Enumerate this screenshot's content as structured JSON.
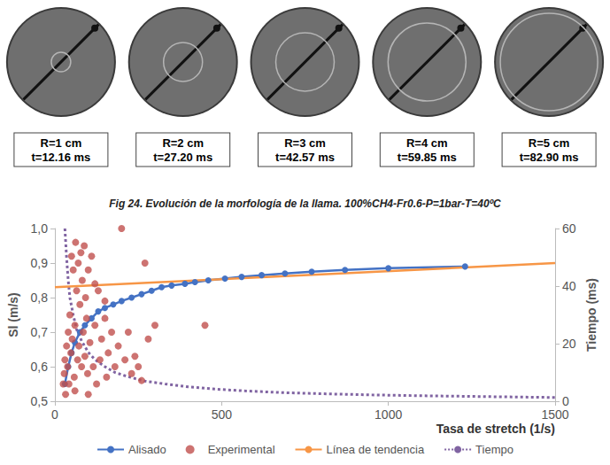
{
  "panels": [
    {
      "label": "R=1 cm",
      "time": "t=12.16 ms"
    },
    {
      "label": "R=2 cm",
      "time": "t=27.20 ms"
    },
    {
      "label": "R=3 cm",
      "time": "t=42.57 ms"
    },
    {
      "label": "R=4 cm",
      "time": "t=59.85 ms"
    },
    {
      "label": "R=5 cm",
      "time": "t=82.90 ms"
    }
  ],
  "caption": "Fig 24. Evolución de la morfología de la llama. 100%CH4-Fr0.6-P=1bar-T=40ºC",
  "chart_data": {
    "type": "scatter",
    "x_label": "Tasa de stretch (1/s)",
    "y_label": "Sl (m/s)",
    "y2_label": "Tiempo (ms)",
    "xlim": [
      0,
      1500
    ],
    "xticks": [
      0,
      500,
      1000,
      1500
    ],
    "ylim": [
      0.5,
      1.0
    ],
    "yticks": [
      {
        "value": 0.5,
        "label": "0,5"
      },
      {
        "value": 0.6,
        "label": "0,6"
      },
      {
        "value": 0.7,
        "label": "0,7"
      },
      {
        "value": 0.8,
        "label": "0,8"
      },
      {
        "value": 0.9,
        "label": "0,9"
      },
      {
        "value": 1.0,
        "label": "1,0"
      }
    ],
    "y2lim": [
      0,
      60
    ],
    "y2ticks": [
      0,
      20,
      40,
      60
    ],
    "grid": false,
    "legend": "bottom",
    "series": [
      {
        "name": "Alisado",
        "type": "line",
        "marker": "circle",
        "line_style": "solid",
        "color": "#4472c4",
        "x": [
          30,
          40,
          50,
          60,
          75,
          90,
          110,
          130,
          150,
          175,
          200,
          230,
          260,
          290,
          320,
          350,
          390,
          420,
          460,
          510,
          560,
          620,
          690,
          770,
          870,
          1000,
          1230
        ],
        "values": [
          0.55,
          0.6,
          0.64,
          0.67,
          0.7,
          0.72,
          0.74,
          0.76,
          0.77,
          0.78,
          0.79,
          0.8,
          0.81,
          0.82,
          0.83,
          0.835,
          0.84,
          0.845,
          0.85,
          0.855,
          0.86,
          0.865,
          0.87,
          0.875,
          0.88,
          0.885,
          0.89
        ]
      },
      {
        "name": "Experimental",
        "type": "scatter",
        "marker": "circle",
        "color": "#c0504d",
        "x": [
          25,
          28,
          30,
          32,
          35,
          38,
          40,
          42,
          45,
          48,
          50,
          52,
          55,
          58,
          60,
          62,
          65,
          68,
          70,
          72,
          75,
          78,
          80,
          82,
          85,
          88,
          90,
          92,
          95,
          98,
          100,
          105,
          110,
          115,
          120,
          125,
          130,
          135,
          140,
          150,
          155,
          160,
          170,
          180,
          190,
          200,
          210,
          220,
          230,
          240,
          250,
          260,
          270,
          280,
          300,
          450,
          100,
          60,
          150,
          120
        ],
        "values": [
          0.55,
          0.58,
          0.62,
          0.52,
          0.66,
          0.6,
          0.7,
          0.55,
          0.75,
          0.64,
          0.92,
          0.68,
          0.88,
          0.57,
          0.72,
          0.96,
          0.82,
          0.62,
          0.9,
          0.66,
          0.78,
          0.93,
          0.6,
          0.85,
          0.7,
          0.95,
          0.63,
          0.8,
          0.74,
          0.58,
          0.88,
          0.67,
          0.92,
          0.6,
          0.72,
          0.55,
          0.82,
          0.62,
          0.68,
          0.74,
          0.57,
          0.64,
          0.7,
          0.6,
          0.66,
          1.0,
          0.62,
          0.7,
          0.58,
          0.63,
          0.6,
          0.56,
          0.9,
          0.68,
          0.72,
          0.72,
          0.52,
          0.53,
          0.79,
          0.84
        ]
      },
      {
        "name": "Línea de tendencia",
        "type": "line",
        "line_style": "solid",
        "color": "#f79646",
        "x": [
          0,
          1500
        ],
        "values": [
          0.83,
          0.9
        ]
      },
      {
        "name": "Tiempo",
        "type": "line",
        "line_style": "dotted",
        "color": "#8064a2",
        "axis": "y2",
        "x": [
          30,
          35,
          40,
          45,
          55,
          65,
          80,
          100,
          120,
          150,
          180,
          220,
          270,
          330,
          400,
          480,
          570,
          680,
          800,
          950,
          1100,
          1300,
          1500
        ],
        "values": [
          60,
          50,
          42,
          36,
          30,
          25,
          21,
          17,
          14.5,
          12,
          10,
          8.5,
          7,
          6,
          5,
          4.2,
          3.6,
          3,
          2.6,
          2.2,
          1.9,
          1.6,
          1.3
        ]
      }
    ]
  }
}
